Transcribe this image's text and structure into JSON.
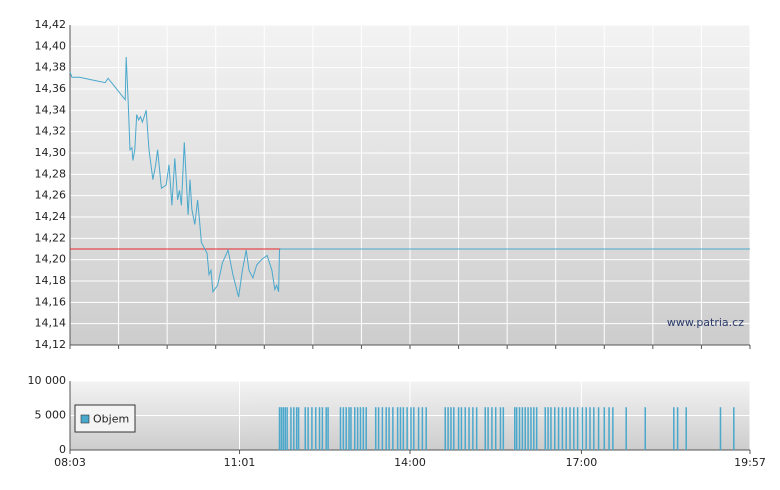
{
  "chart_data": [
    {
      "type": "line",
      "watermark": "www.patria.cz",
      "xlim": [
        483,
        1197
      ],
      "ylim": [
        14.12,
        14.42
      ],
      "yticks": [
        {
          "value": 14.12,
          "label": "14,12"
        },
        {
          "value": 14.14,
          "label": "14,14"
        },
        {
          "value": 14.16,
          "label": "14,16"
        },
        {
          "value": 14.18,
          "label": "14,18"
        },
        {
          "value": 14.2,
          "label": "14,20"
        },
        {
          "value": 14.22,
          "label": "14,22"
        },
        {
          "value": 14.24,
          "label": "14,24"
        },
        {
          "value": 14.26,
          "label": "14,26"
        },
        {
          "value": 14.28,
          "label": "14,28"
        },
        {
          "value": 14.3,
          "label": "14,30"
        },
        {
          "value": 14.32,
          "label": "14,32"
        },
        {
          "value": 14.34,
          "label": "14,34"
        },
        {
          "value": 14.36,
          "label": "14,36"
        },
        {
          "value": 14.38,
          "label": "14,38"
        },
        {
          "value": 14.4,
          "label": "14,40"
        },
        {
          "value": 14.42,
          "label": "14,42"
        }
      ],
      "grid": true,
      "reference_line": {
        "value": 14.21,
        "color": "#e8262a"
      },
      "series": [
        {
          "color": "#4aa8cc",
          "x": [
            483,
            485,
            493,
            509,
            520,
            523,
            541,
            542,
            544,
            546,
            548,
            549,
            551,
            553,
            555,
            557,
            559,
            563,
            566,
            570,
            573,
            575,
            579,
            584,
            587,
            590,
            593,
            596,
            598,
            600,
            603,
            607,
            609,
            611,
            614,
            617,
            619,
            621,
            627,
            629,
            631,
            633,
            638,
            643,
            649,
            654,
            660,
            664,
            668,
            671,
            675,
            679,
            684,
            690,
            695,
            698,
            700,
            702,
            703,
            704,
            1197
          ],
          "values": [
            14.376,
            14.371,
            14.371,
            14.368,
            14.366,
            14.37,
            14.35,
            14.39,
            14.35,
            14.303,
            14.305,
            14.293,
            14.303,
            14.336,
            14.331,
            14.334,
            14.329,
            14.34,
            14.303,
            14.275,
            14.289,
            14.303,
            14.267,
            14.27,
            14.289,
            14.251,
            14.295,
            14.256,
            14.265,
            14.251,
            14.31,
            14.242,
            14.275,
            14.247,
            14.233,
            14.256,
            14.237,
            14.216,
            14.206,
            14.186,
            14.19,
            14.17,
            14.176,
            14.197,
            14.209,
            14.186,
            14.165,
            14.19,
            14.209,
            14.19,
            14.183,
            14.195,
            14.2,
            14.204,
            14.19,
            14.172,
            14.176,
            14.17,
            14.209,
            14.21,
            14.21
          ]
        }
      ]
    },
    {
      "type": "bar",
      "xlim": [
        483,
        1197
      ],
      "xticks": [
        {
          "value": 483,
          "label": "08:03"
        },
        {
          "value": 661,
          "label": "11:01"
        },
        {
          "value": 840,
          "label": "14:00"
        },
        {
          "value": 1020,
          "label": "17:00"
        },
        {
          "value": 1197,
          "label": "19:57"
        }
      ],
      "ylim": [
        0,
        10000
      ],
      "yticks": [
        0,
        {
          "value": 5000,
          "label": "5 000"
        },
        {
          "value": 10000,
          "label": "10 000"
        }
      ],
      "grid": true,
      "legend": "left",
      "series": [
        {
          "name": "Objem",
          "color": "#4aa8cc",
          "x": [
            703,
            705,
            707,
            709,
            711,
            715,
            718,
            721,
            723,
            730,
            733,
            737,
            741,
            745,
            748,
            752,
            754,
            767,
            770,
            773,
            776,
            778,
            782,
            785,
            788,
            791,
            794,
            804,
            807,
            811,
            815,
            818,
            822,
            827,
            830,
            833,
            837,
            841,
            844,
            849,
            853,
            857,
            877,
            880,
            883,
            886,
            891,
            894,
            898,
            902,
            906,
            910,
            919,
            922,
            926,
            930,
            935,
            938,
            950,
            952,
            955,
            958,
            961,
            964,
            967,
            970,
            973,
            982,
            985,
            988,
            992,
            996,
            1000,
            1004,
            1008,
            1012,
            1016,
            1021,
            1025,
            1029,
            1033,
            1038,
            1044,
            1049,
            1053,
            1067,
            1087,
            1117,
            1121,
            1130,
            1166,
            1180
          ],
          "values": [
            6200,
            6200,
            6200,
            6200,
            6200,
            6200,
            6200,
            6200,
            6200,
            6200,
            6200,
            6200,
            6200,
            6200,
            6200,
            6200,
            6200,
            6200,
            6200,
            6200,
            6200,
            6200,
            6200,
            6200,
            6200,
            6200,
            6200,
            6200,
            6200,
            6200,
            6200,
            6200,
            6200,
            6200,
            6200,
            6200,
            6200,
            6200,
            6200,
            6200,
            6200,
            6200,
            6200,
            6200,
            6200,
            6200,
            6200,
            6200,
            6200,
            6200,
            6200,
            6200,
            6200,
            6200,
            6200,
            6200,
            6200,
            6200,
            6200,
            6200,
            6200,
            6200,
            6200,
            6200,
            6200,
            6200,
            6200,
            6200,
            6200,
            6200,
            6200,
            6200,
            6200,
            6200,
            6200,
            6200,
            6200,
            6200,
            6200,
            6200,
            6200,
            6200,
            6200,
            6200,
            6200,
            6200,
            6200,
            6200,
            6200,
            6200,
            6200,
            6200
          ]
        }
      ]
    }
  ]
}
